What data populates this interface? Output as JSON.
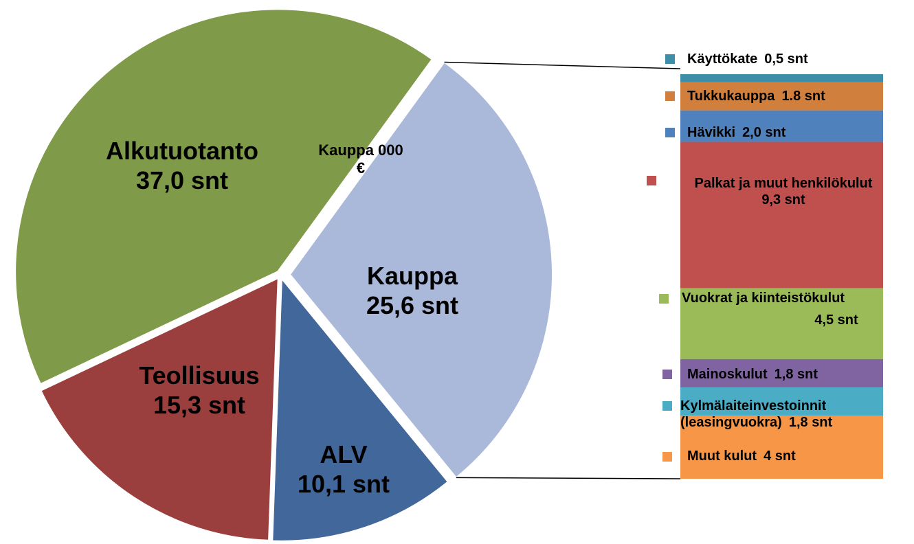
{
  "chart_data": {
    "type": "pie",
    "categories": [
      "Kauppa",
      "ALV",
      "Teollisuus",
      "Alkutuotanto"
    ],
    "values": [
      25.6,
      10.1,
      15.3,
      37.0
    ],
    "value_labels": [
      "25,6 snt",
      "10,1 snt",
      "15,3 snt",
      "37,0 snt"
    ],
    "colors": [
      "#aab9d9",
      "#41679b",
      "#9b3f3e",
      "#7f9a48"
    ],
    "annotation": "Kauppa 000 €",
    "breakdown": {
      "categories": [
        "Käyttökate",
        "Tukkukauppa",
        "Hävikki",
        "Palkat ja muut henkilökulut",
        "Vuokrat ja kiinteistökulut",
        "Mainoskulut",
        "Kylmälaiteinvestoinnit (leasingvuokra)",
        "Muut kulut"
      ],
      "values": [
        0.5,
        1.8,
        2.0,
        9.3,
        4.5,
        1.8,
        1.8,
        4
      ],
      "value_labels": [
        "0,5 snt",
        "1.8 snt",
        "2,0 snt",
        "9,3 snt",
        "4,5 snt",
        "1,8 snt",
        "1,8 snt",
        "4 snt"
      ],
      "colors": [
        "#3e8ea8",
        "#d07f3d",
        "#4f81bd",
        "#c0504d",
        "#9bbb59",
        "#8064a2",
        "#4bacc6",
        "#f79646"
      ]
    }
  }
}
